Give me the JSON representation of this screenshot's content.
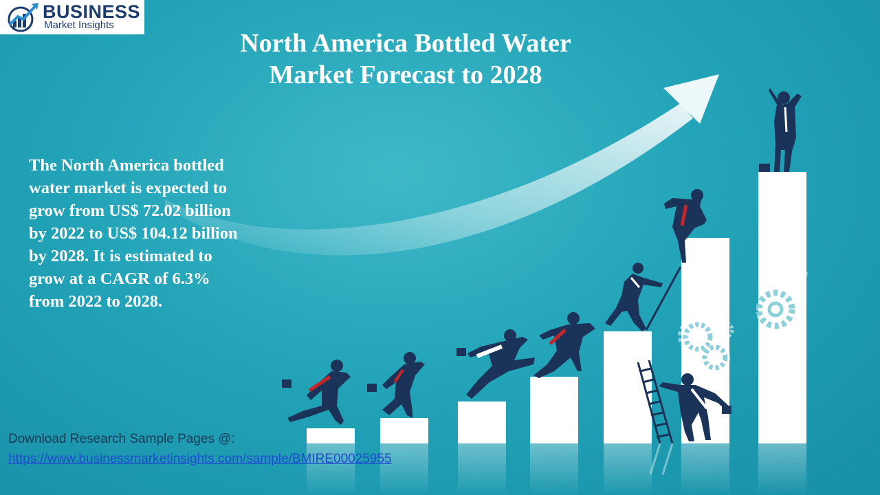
{
  "logo": {
    "brand": "BUSINESS",
    "tagline": "Market Insights",
    "mark_icon": "rising-chart-globe-icon"
  },
  "title": {
    "line1": "North America Bottled Water",
    "line2": "Market Forecast to 2028"
  },
  "description": {
    "lines": [
      " The North America bottled",
      "water market is expected to",
      "grow from US$ 72.02 billion",
      "by 2022 to US$ 104.12 billion",
      "by 2028. It is estimated to",
      "grow at a CAGR of 6.3%",
      "from 2022 to 2028."
    ]
  },
  "download": {
    "label": "Download Research Sample Pages @:",
    "url": "https://www.businessmarketinsights.com/sample/BMIRE00025955"
  },
  "colors": {
    "background": "#23a4b8",
    "figure_navy": "#1b3358",
    "tie_red": "#c0282c",
    "link_blue": "#1f4bd1",
    "logo_navy": "#1d3c6e"
  },
  "illustration": {
    "icons": [
      "upward-arrow-icon",
      "gear-icon",
      "ladder-icon",
      "briefcase-icon",
      "businessperson-icon"
    ]
  }
}
